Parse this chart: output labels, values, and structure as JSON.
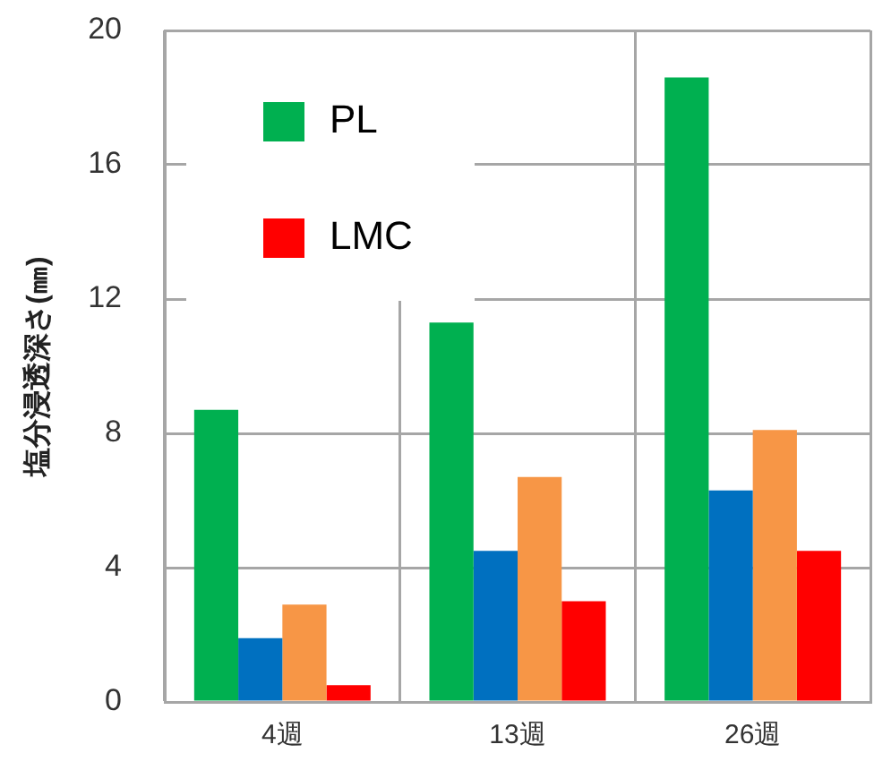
{
  "chart_data": {
    "type": "bar",
    "ylabel": "塩分浸透深さ(㎜)",
    "categories": [
      "4週",
      "13週",
      "26週"
    ],
    "series": [
      {
        "name": "PL",
        "color": "#00b050",
        "values": [
          8.7,
          11.3,
          18.6
        ]
      },
      {
        "color": "#0070c0",
        "values": [
          1.9,
          4.5,
          6.3
        ]
      },
      {
        "color": "#f79646",
        "values": [
          2.9,
          6.7,
          8.1
        ]
      },
      {
        "name": "LMC",
        "color": "#ff0000",
        "values": [
          0.5,
          3.0,
          4.5
        ]
      }
    ],
    "ylim": [
      0,
      20
    ],
    "yticks": [
      0,
      4,
      8,
      12,
      16,
      20
    ],
    "grid": true,
    "legend": "top left"
  }
}
